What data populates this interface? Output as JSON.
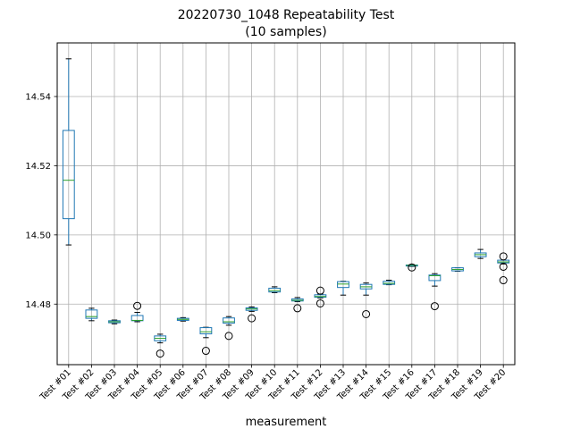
{
  "chart_data": {
    "type": "boxplot",
    "title": "20220730_1048 Repeatability Test",
    "subtitle": "(10 samples)",
    "xlabel": "measurement",
    "ylabel": "",
    "ylim": [
      14.4625,
      14.5555
    ],
    "yticks": [
      14.48,
      14.5,
      14.52,
      14.54
    ],
    "ytick_labels": [
      "14.48",
      "14.50",
      "14.52",
      "14.54"
    ],
    "grid": true,
    "colors": {
      "box": "#1f77b4",
      "median": "#2ca02c",
      "whisker": "#000000",
      "flier": "#000000",
      "grid": "#b0b0b0"
    },
    "categories": [
      "Test #01",
      "Test #02",
      "Test #03",
      "Test #04",
      "Test #05",
      "Test #06",
      "Test #07",
      "Test #08",
      "Test #09",
      "Test #10",
      "Test #11",
      "Test #12",
      "Test #13",
      "Test #14",
      "Test #15",
      "Test #16",
      "Test #17",
      "Test #18",
      "Test #19",
      "Test #20"
    ],
    "boxes": [
      {
        "whislo": 14.4971,
        "q1": 14.5047,
        "med": 14.5158,
        "q3": 14.5302,
        "whishi": 14.5509,
        "fliers": []
      },
      {
        "whislo": 14.4752,
        "q1": 14.4759,
        "med": 14.4764,
        "q3": 14.4783,
        "whishi": 14.4788,
        "fliers": []
      },
      {
        "whislo": 14.4743,
        "q1": 14.4746,
        "med": 14.4749,
        "q3": 14.4752,
        "whishi": 14.4754,
        "fliers": []
      },
      {
        "whislo": 14.4749,
        "q1": 14.4752,
        "med": 14.4753,
        "q3": 14.4767,
        "whishi": 14.4776,
        "fliers": [
          14.4795
        ]
      },
      {
        "whislo": 14.4688,
        "q1": 14.4694,
        "med": 14.4701,
        "q3": 14.4708,
        "whishi": 14.4713,
        "fliers": [
          14.4657
        ]
      },
      {
        "whislo": 14.4751,
        "q1": 14.4753,
        "med": 14.4756,
        "q3": 14.4759,
        "whishi": 14.4761,
        "fliers": []
      },
      {
        "whislo": 14.4703,
        "q1": 14.4714,
        "med": 14.472,
        "q3": 14.4732,
        "whishi": 14.4733,
        "fliers": [
          14.4665
        ]
      },
      {
        "whislo": 14.4739,
        "q1": 14.4745,
        "med": 14.4749,
        "q3": 14.476,
        "whishi": 14.4764,
        "fliers": [
          14.4708
        ]
      },
      {
        "whislo": 14.4779,
        "q1": 14.4782,
        "med": 14.4786,
        "q3": 14.4789,
        "whishi": 14.4792,
        "fliers": [
          14.4759
        ]
      },
      {
        "whislo": 14.4833,
        "q1": 14.4835,
        "med": 14.4839,
        "q3": 14.4846,
        "whishi": 14.485,
        "fliers": []
      },
      {
        "whislo": 14.4807,
        "q1": 14.4809,
        "med": 14.4811,
        "q3": 14.4815,
        "whishi": 14.4819,
        "fliers": [
          14.4788
        ]
      },
      {
        "whislo": 14.4818,
        "q1": 14.482,
        "med": 14.4822,
        "q3": 14.4827,
        "whishi": 14.4829,
        "fliers": [
          14.4839,
          14.4802
        ]
      },
      {
        "whislo": 14.4826,
        "q1": 14.4848,
        "med": 14.4858,
        "q3": 14.4865,
        "whishi": 14.4866,
        "fliers": []
      },
      {
        "whislo": 14.4826,
        "q1": 14.4844,
        "med": 14.485,
        "q3": 14.4857,
        "whishi": 14.4861,
        "fliers": [
          14.4771
        ]
      },
      {
        "whislo": 14.4856,
        "q1": 14.4857,
        "med": 14.486,
        "q3": 14.4866,
        "whishi": 14.4869,
        "fliers": []
      },
      {
        "whislo": 14.4909,
        "q1": 14.491,
        "med": 14.4912,
        "q3": 14.4913,
        "whishi": 14.4914,
        "fliers": [
          14.4906
        ]
      },
      {
        "whislo": 14.4852,
        "q1": 14.4868,
        "med": 14.4882,
        "q3": 14.4884,
        "whishi": 14.4888,
        "fliers": [
          14.4794
        ]
      },
      {
        "whislo": 14.4895,
        "q1": 14.4896,
        "med": 14.49,
        "q3": 14.4905,
        "whishi": 14.4905,
        "fliers": []
      },
      {
        "whislo": 14.4932,
        "q1": 14.4937,
        "med": 14.4943,
        "q3": 14.4948,
        "whishi": 14.4958,
        "fliers": []
      },
      {
        "whislo": 14.4916,
        "q1": 14.4919,
        "med": 14.4922,
        "q3": 14.4927,
        "whishi": 14.4927,
        "fliers": [
          14.4938,
          14.4908,
          14.4869
        ]
      }
    ]
  }
}
